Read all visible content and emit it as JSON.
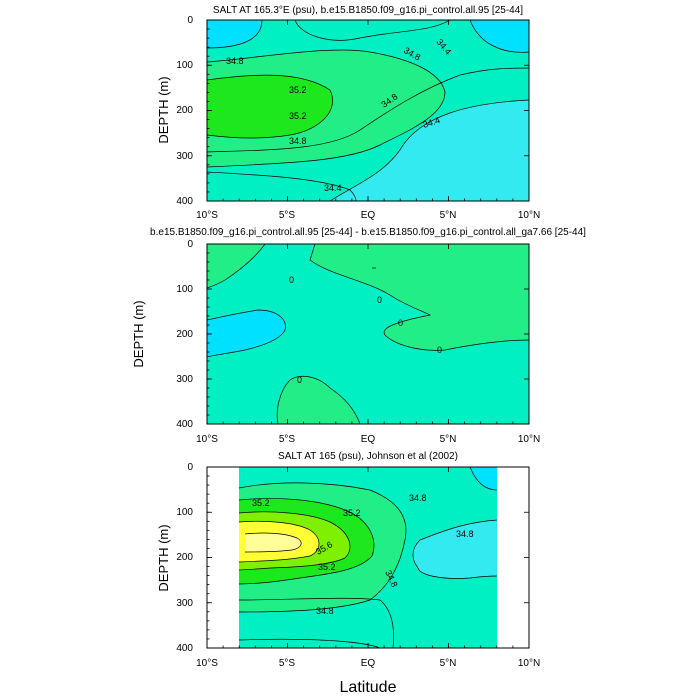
{
  "figure": {
    "xlabel": "Latitude"
  },
  "colors": {
    "lev1": "#00e1ff",
    "lev2": "#33eaf0",
    "lev3": "#00f0c4",
    "lev4": "#22ee88",
    "lev5": "#1de81d",
    "lev6": "#7ff000",
    "lev7": "#c8f000",
    "lev8": "#ffff33",
    "lev9": "#ffff99",
    "white": "#ffffff"
  },
  "chart_data": [
    {
      "type": "contour",
      "title": "SALT AT 165.3°E (psu), b.e15.B1850.f09_g16.pi_control.all.95 [25-44]",
      "ylabel": "DEPTH (m)",
      "xlim": [
        -10,
        10
      ],
      "ylim": [
        0,
        400
      ],
      "x_ticks": [
        "10°S",
        "5°S",
        "EQ",
        "5°N",
        "10°N"
      ],
      "y_ticks": [
        "0",
        "100",
        "200",
        "300",
        "400"
      ],
      "contour_labels": [
        "34.4",
        "34.8",
        "34.8",
        "35.2",
        "35.2",
        "34.8",
        "34.8",
        "34.4",
        "34.4"
      ]
    },
    {
      "type": "contour",
      "title": "b.e15.B1850.f09_g16.pi_control.all.95 [25-44] - b.e15.B1850.f09_g16.pi_control.all_ga7.66 [25-44]",
      "ylabel": "DEPTH (m)",
      "xlim": [
        -10,
        10
      ],
      "ylim": [
        0,
        400
      ],
      "x_ticks": [
        "10°S",
        "5°S",
        "EQ",
        "5°N",
        "10°N"
      ],
      "y_ticks": [
        "0",
        "100",
        "200",
        "300",
        "400"
      ],
      "contour_labels": [
        "0",
        "0",
        "0",
        "0",
        "0"
      ]
    },
    {
      "type": "contour",
      "title": "SALT AT 165 (psu), Johnson et al (2002)",
      "ylabel": "DEPTH (m)",
      "xlim": [
        -10,
        10
      ],
      "ylim": [
        0,
        400
      ],
      "x_ticks": [
        "10°S",
        "5°S",
        "EQ",
        "5°N",
        "10°N"
      ],
      "y_ticks": [
        "0",
        "100",
        "200",
        "300",
        "400"
      ],
      "contour_labels": [
        "35.2",
        "35.2",
        "34.8",
        "35.6",
        "34.8",
        "35.2",
        "34.8",
        "34.8"
      ]
    }
  ]
}
